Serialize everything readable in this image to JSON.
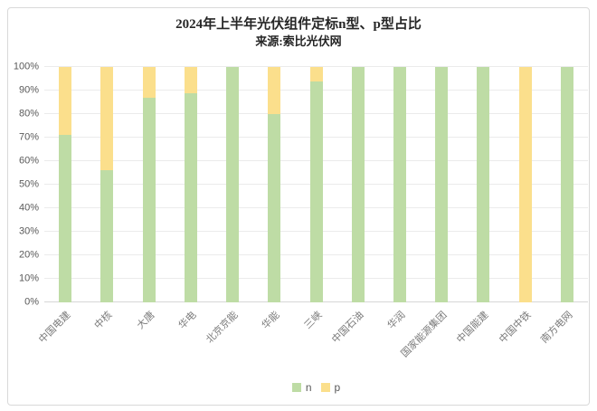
{
  "chart_data": {
    "type": "bar",
    "stacked": true,
    "title": "2024年上半年光伏组件定标n型、p型占比",
    "subtitle": "来源:索比光伏网",
    "categories": [
      "中国电建",
      "中核",
      "大唐",
      "华电",
      "北京京能",
      "华能",
      "三峡",
      "中国石油",
      "华润",
      "国家能源集团",
      "中国能建",
      "中国中铁",
      "南方电网"
    ],
    "series": [
      {
        "name": "n",
        "color": "#bedca5",
        "values": [
          71,
          56,
          87,
          89,
          100,
          80,
          94,
          100,
          100,
          100,
          100,
          0,
          100
        ]
      },
      {
        "name": "p",
        "color": "#fbdf8c",
        "values": [
          29,
          44,
          13,
          11,
          0,
          20,
          6,
          0,
          0,
          0,
          0,
          100,
          0
        ]
      }
    ],
    "unit": "%",
    "ylim": [
      0,
      100
    ],
    "yticks": [
      "0%",
      "10%",
      "20%",
      "30%",
      "40%",
      "50%",
      "60%",
      "70%",
      "80%",
      "90%",
      "100%"
    ],
    "grid": true,
    "legend_position": "bottom"
  }
}
